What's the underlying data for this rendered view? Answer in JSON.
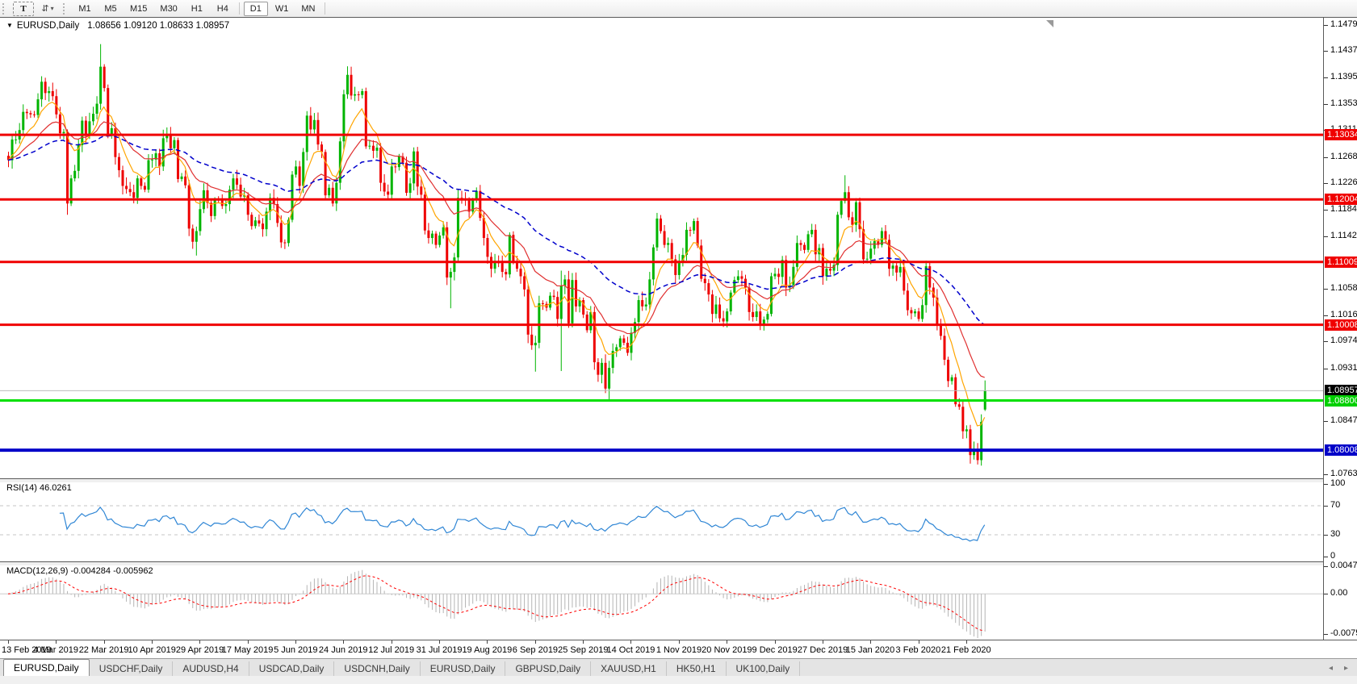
{
  "toolbar": {
    "text_tool_label": "T",
    "arrange_icon": "tile-charts-icon",
    "timeframes": [
      "M1",
      "M5",
      "M15",
      "M30",
      "H1",
      "H4",
      "D1",
      "W1",
      "MN"
    ],
    "active_timeframe": "D1"
  },
  "chart": {
    "title_symbol": "EURUSD,Daily",
    "title_ohlc": "1.08656 1.09120 1.08633 1.08957",
    "price_axis": {
      "ticks": [
        "1.14790",
        "1.14370",
        "1.13950",
        "1.13530",
        "1.13110",
        "1.12680",
        "1.12260",
        "1.11840",
        "1.11420",
        "1.10580",
        "1.10160",
        "1.09740",
        "1.09310",
        "1.08470",
        "1.07630"
      ],
      "badges": [
        {
          "label": "1.13034",
          "price": 1.13034,
          "bg": "#f00000"
        },
        {
          "label": "1.12004",
          "price": 1.12004,
          "bg": "#f00000"
        },
        {
          "label": "1.11009",
          "price": 1.11009,
          "bg": "#f00000"
        },
        {
          "label": "1.10008",
          "price": 1.10008,
          "bg": "#f00000"
        },
        {
          "label": "1.08957",
          "price": 1.08957,
          "bg": "#000000"
        },
        {
          "label": "1.08800",
          "price": 1.088,
          "bg": "#00d000"
        },
        {
          "label": "1.08008",
          "price": 1.08008,
          "bg": "#0000c8"
        }
      ]
    },
    "hlines": [
      {
        "price": 1.13034,
        "color": "#f00000",
        "width": 3
      },
      {
        "price": 1.12004,
        "color": "#f00000",
        "width": 3
      },
      {
        "price": 1.11009,
        "color": "#f00000",
        "width": 3
      },
      {
        "price": 1.10008,
        "color": "#f00000",
        "width": 3
      },
      {
        "price": 1.088,
        "color": "#00e000",
        "width": 3
      },
      {
        "price": 1.08008,
        "color": "#0000c8",
        "width": 4
      },
      {
        "price": 1.08957,
        "color": "#bbbbbb",
        "width": 1
      }
    ],
    "date_labels": [
      "13 Feb 2019",
      "4 Mar 2019",
      "22 Mar 2019",
      "10 Apr 2019",
      "29 Apr 2019",
      "17 May 2019",
      "5 Jun 2019",
      "24 Jun 2019",
      "12 Jul 2019",
      "31 Jul 2019",
      "19 Aug 2019",
      "6 Sep 2019",
      "25 Sep 2019",
      "14 Oct 2019",
      "1 Nov 2019",
      "20 Nov 2019",
      "9 Dec 2019",
      "27 Dec 2019",
      "15 Jan 2020",
      "3 Feb 2020",
      "21 Feb 2020"
    ]
  },
  "rsi_panel": {
    "label": "RSI(14) 46.0261",
    "period": 14,
    "current_value": 46.0261,
    "axis_labels": [
      {
        "label": "100",
        "value": 100
      },
      {
        "label": "70",
        "value": 70
      },
      {
        "label": "30",
        "value": 30
      },
      {
        "label": "0",
        "value": 0
      }
    ],
    "levels": [
      70,
      30
    ]
  },
  "macd_panel": {
    "label": "MACD(12,26,9) -0.004284 -0.005962",
    "fast": 12,
    "slow": 26,
    "signal": 9,
    "macd_value": -0.004284,
    "signal_value": -0.005962,
    "axis_labels": [
      {
        "label": "0.004738",
        "value": 0.004738
      },
      {
        "label": "0.00",
        "value": 0
      },
      {
        "label": "-0.007584",
        "value": -0.007584
      }
    ],
    "max": 0.004738,
    "min": -0.007584
  },
  "tabbar": {
    "tabs": [
      {
        "label": "EURUSD,Daily",
        "active": true
      },
      {
        "label": "USDCHF,Daily",
        "active": false
      },
      {
        "label": "AUDUSD,H4",
        "active": false
      },
      {
        "label": "USDCAD,Daily",
        "active": false
      },
      {
        "label": "USDCNH,Daily",
        "active": false
      },
      {
        "label": "EURUSD,Daily",
        "active": false
      },
      {
        "label": "GBPUSD,Daily",
        "active": false
      },
      {
        "label": "XAUUSD,H1",
        "active": false
      },
      {
        "label": "HK50,H1",
        "active": false
      },
      {
        "label": "UK100,Daily",
        "active": false
      }
    ],
    "left_arrow": "◂",
    "right_arrow": "▸"
  },
  "colors": {
    "bull": "#00b400",
    "bear": "#ee0000",
    "ma_fast": "#ffa500",
    "ma_mid": "#e03030",
    "ma_slow": "#0000cc",
    "rsi": "#2f86d5",
    "rsi_level": "#c4c4c4",
    "macd_hist": "#b4b4b4",
    "macd_signal": "#ff0000",
    "current_line": "#bbbbbb"
  },
  "chart_data": {
    "type": "candlestick",
    "symbol": "EURUSD",
    "timeframe": "Daily",
    "price_range": [
      1.0756,
      1.149
    ],
    "first_open": 1.127,
    "closes": [
      1.1263,
      1.1296,
      1.1296,
      1.1311,
      1.134,
      1.1338,
      1.1336,
      1.1335,
      1.136,
      1.1388,
      1.137,
      1.1373,
      1.1365,
      1.1336,
      1.1306,
      1.1308,
      1.1194,
      1.1234,
      1.1246,
      1.1287,
      1.1326,
      1.1304,
      1.1325,
      1.1337,
      1.1353,
      1.1412,
      1.1378,
      1.1302,
      1.1314,
      1.1268,
      1.1247,
      1.1222,
      1.1217,
      1.1212,
      1.1203,
      1.1234,
      1.1222,
      1.1216,
      1.1263,
      1.1264,
      1.1274,
      1.1253,
      1.1298,
      1.1304,
      1.1282,
      1.1295,
      1.1233,
      1.1237,
      1.1223,
      1.1154,
      1.1133,
      1.115,
      1.1185,
      1.1215,
      1.1195,
      1.1174,
      1.12,
      1.1199,
      1.119,
      1.1193,
      1.1216,
      1.1234,
      1.1224,
      1.1205,
      1.1207,
      1.1176,
      1.1158,
      1.1167,
      1.1162,
      1.1153,
      1.1181,
      1.1203,
      1.1193,
      1.1163,
      1.1132,
      1.1131,
      1.1168,
      1.124,
      1.1253,
      1.1222,
      1.1276,
      1.1334,
      1.1312,
      1.1327,
      1.1288,
      1.1276,
      1.1207,
      1.1219,
      1.1194,
      1.1227,
      1.1293,
      1.1368,
      1.1399,
      1.1366,
      1.1368,
      1.1367,
      1.1373,
      1.1285,
      1.1286,
      1.1278,
      1.1283,
      1.1227,
      1.1213,
      1.1208,
      1.1253,
      1.1252,
      1.1269,
      1.1259,
      1.1211,
      1.1226,
      1.1277,
      1.1221,
      1.1208,
      1.1151,
      1.1139,
      1.1146,
      1.1128,
      1.1143,
      1.1156,
      1.1076,
      1.1085,
      1.1108,
      1.1203,
      1.12,
      1.1199,
      1.1181,
      1.1199,
      1.1214,
      1.1171,
      1.1139,
      1.1109,
      1.109,
      1.11,
      1.1099,
      1.1085,
      1.1081,
      1.1144,
      1.1101,
      1.109,
      1.1078,
      1.1057,
      1.0985,
      1.0968,
      1.0972,
      1.1035,
      1.1034,
      1.1028,
      1.1047,
      1.1045,
      1.101,
      1.1063,
      1.1073,
      1.1003,
      1.1072,
      1.103,
      1.104,
      1.1017,
      1.0992,
      1.1021,
      1.0941,
      1.0921,
      1.094,
      1.0899,
      1.0932,
      1.0959,
      1.0965,
      1.0979,
      1.0972,
      1.0956,
      1.0988,
      1.1005,
      1.104,
      1.103,
      1.1033,
      1.1073,
      1.1124,
      1.117,
      1.115,
      1.1128,
      1.1131,
      1.1105,
      1.108,
      1.11,
      1.1112,
      1.1152,
      1.1151,
      1.1166,
      1.1127,
      1.1074,
      1.1067,
      1.1049,
      1.1018,
      1.1033,
      1.1011,
      1.1006,
      1.1022,
      1.1052,
      1.1072,
      1.1078,
      1.1074,
      1.106,
      1.1021,
      1.1013,
      1.1022,
      1.1001,
      1.1009,
      1.1018,
      1.1078,
      1.1082,
      1.1077,
      1.1104,
      1.106,
      1.1064,
      1.1093,
      1.1131,
      1.1128,
      1.112,
      1.1145,
      1.1152,
      1.1113,
      1.1123,
      1.1078,
      1.109,
      1.1087,
      1.1096,
      1.1176,
      1.1198,
      1.1212,
      1.1172,
      1.116,
      1.1196,
      1.1153,
      1.1105,
      1.1106,
      1.1122,
      1.1134,
      1.1128,
      1.115,
      1.1136,
      1.109,
      1.1095,
      1.1084,
      1.1093,
      1.1055,
      1.1024,
      1.1019,
      1.1022,
      1.101,
      1.1032,
      1.1094,
      1.106,
      1.1044,
      1.0999,
      1.0983,
      1.0945,
      1.0911,
      1.0917,
      1.0874,
      1.087,
      1.0831,
      1.0834,
      1.0793,
      1.0801,
      1.0785,
      1.0846,
      1.08957
    ],
    "wick_pattern": [
      8,
      14,
      5,
      11,
      17,
      6,
      12,
      9,
      15,
      7
    ],
    "extremes": {
      "16": {
        "l": 1.1176
      },
      "25": {
        "h": 1.1448
      },
      "51": {
        "l": 1.1111
      },
      "92": {
        "h": 1.1403
      },
      "93": {
        "h": 1.1412
      },
      "120": {
        "l": 1.1027
      },
      "143": {
        "l": 1.0926
      },
      "150": {
        "h": 1.1087,
        "l": 1.0927
      },
      "163": {
        "l": 1.0879
      },
      "176": {
        "h": 1.1179
      },
      "227": {
        "h": 1.1239
      },
      "263": {
        "l": 1.0778
      },
      "264": {
        "l": 1.0782
      }
    },
    "last_bar": [
      1.08656,
      1.0912,
      1.08633,
      1.08957
    ],
    "ma_periods": {
      "fast": 8,
      "mid": 21,
      "slow": 55
    }
  }
}
